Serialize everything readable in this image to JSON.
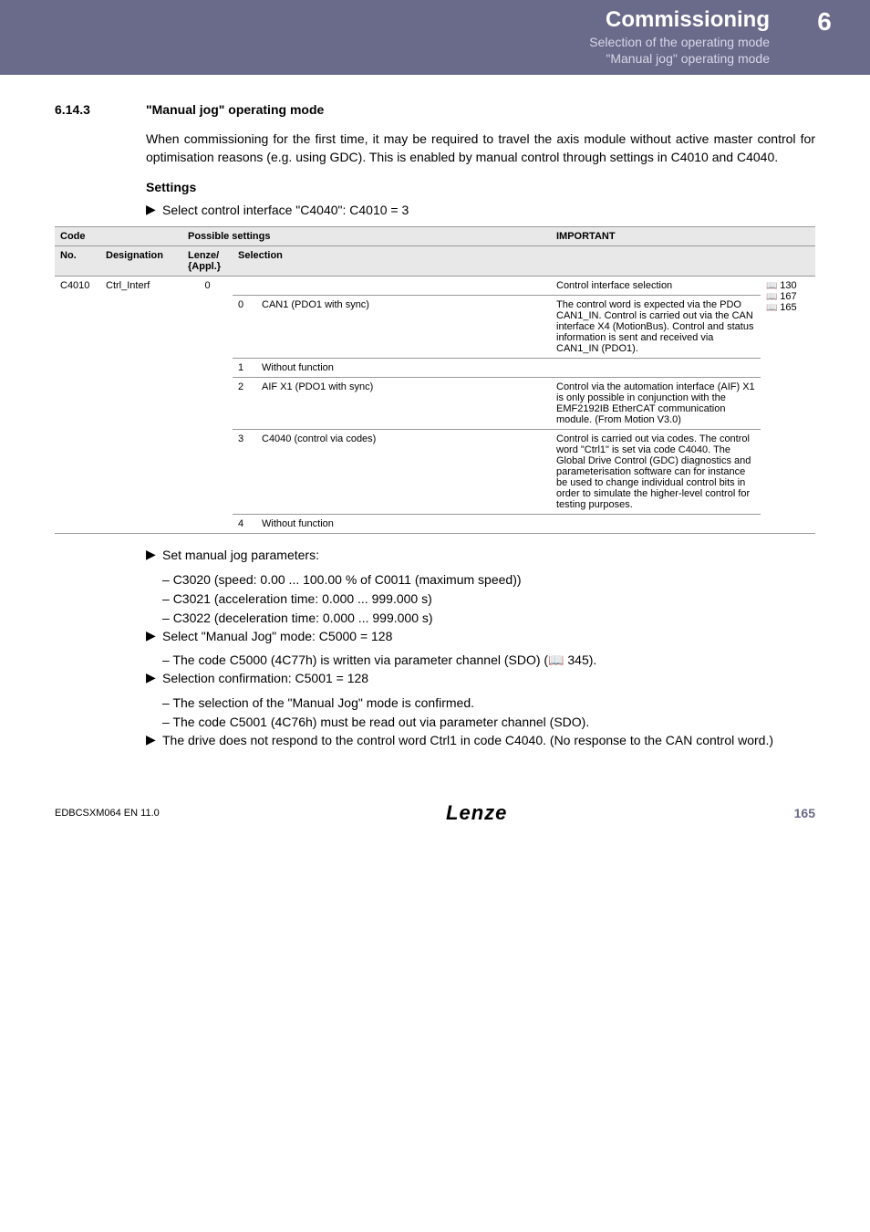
{
  "header": {
    "title": "Commissioning",
    "sub1": "Selection of the operating mode",
    "sub2": "\"Manual jog\" operating mode",
    "chapter": "6"
  },
  "section": {
    "num": "6.14.3",
    "title": "\"Manual jog\" operating mode"
  },
  "intro": "When commissioning for the first time, it may be required to travel the axis module without active master control for optimisation reasons (e.g. using GDC). This is enabled by manual control through settings in C4010 and C4040.",
  "settings_head": "Settings",
  "select_ctrl": "Select control interface \"C4040\": C4010 = 3",
  "tbl": {
    "h_code": "Code",
    "h_possible": "Possible settings",
    "h_important": "IMPORTANT",
    "h_no": "No.",
    "h_desig": "Designation",
    "h_lenze": "Lenze/\n{Appl.}",
    "h_sel": "Selection",
    "code_no": "C4010",
    "code_desig": "Ctrl_Interf",
    "code_lenze": "0",
    "row_top_imp": "Control interface selection",
    "ref1": "130",
    "ref2": "167",
    "ref3": "165",
    "rows": [
      {
        "n": "0",
        "sel": "CAN1 (PDO1 with sync)",
        "imp": "The control word is expected via the PDO CAN1_IN. Control is carried out via the CAN interface X4 (MotionBus). Control and status information is sent and received via CAN1_IN (PDO1)."
      },
      {
        "n": "1",
        "sel": "Without function",
        "imp": ""
      },
      {
        "n": "2",
        "sel": "AIF X1 (PDO1 with sync)",
        "imp": "Control via the automation interface (AIF) X1 is only possible in conjunction with the EMF2192IB EtherCAT communication module. (From Motion V3.0)"
      },
      {
        "n": "3",
        "sel": "C4040 (control via codes)",
        "imp": "Control is carried out via codes. The control word \"Ctrl1\" is set via code C4040. The Global Drive Control (GDC) diagnostics and parameterisation software can for instance be used to change individual control bits in order to simulate the higher-level control for testing purposes."
      },
      {
        "n": "4",
        "sel": "Without function",
        "imp": ""
      }
    ]
  },
  "after": {
    "b1": "Set manual jog parameters:",
    "b1_items": [
      "C3020 (speed: 0.00 ... 100.00 % of C0011 (maximum speed))",
      "C3021 (acceleration time: 0.000 ... 999.000 s)",
      "C3022 (deceleration time: 0.000 ... 999.000 s)"
    ],
    "b2": "Select \"Manual Jog\" mode: C5000 = 128",
    "b2_items": [
      "The code C5000 (4C77h) is written via parameter channel (SDO) (📖 345)."
    ],
    "b3": "Selection confirmation: C5001 = 128",
    "b3_items": [
      "The selection of the \"Manual Jog\" mode is confirmed.",
      "The code C5001 (4C76h) must be read out via parameter channel (SDO)."
    ],
    "b4": "The drive does not respond to the control word Ctrl1 in code C4040. (No response to the CAN control word.)"
  },
  "footer": {
    "left": "EDBCSXM064 EN 11.0",
    "logo": "Lenze",
    "page": "165"
  }
}
